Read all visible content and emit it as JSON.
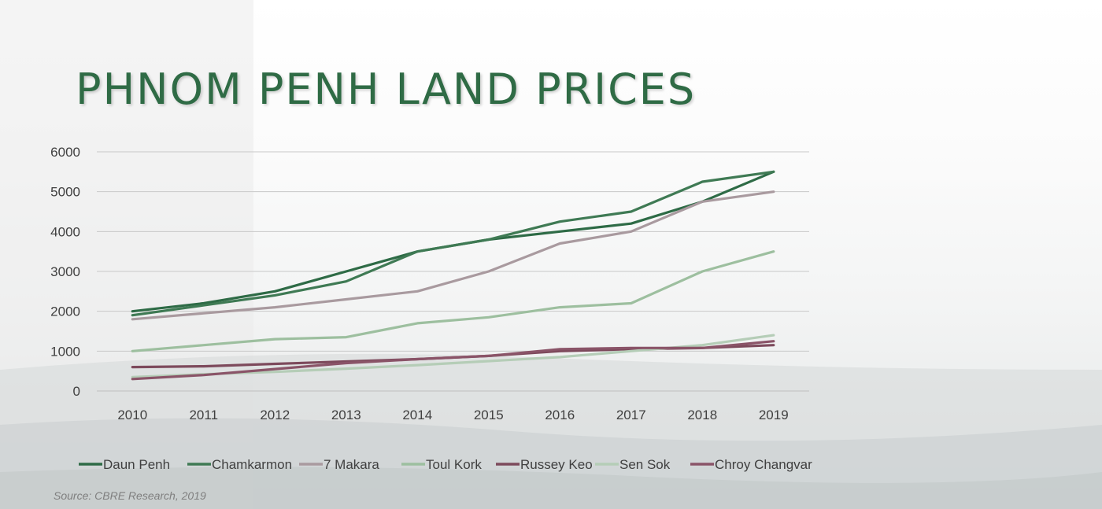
{
  "slide": {
    "title": "PHNOM PENH LAND PRICES",
    "source": "Source: CBRE Research, 2019"
  },
  "chart_data": {
    "type": "line",
    "title": "",
    "xlabel": "",
    "ylabel": "",
    "categories": [
      "2010",
      "2011",
      "2012",
      "2013",
      "2014",
      "2015",
      "2016",
      "2017",
      "2018",
      "2019"
    ],
    "ylim": [
      0,
      6000
    ],
    "yticks": [
      0,
      1000,
      2000,
      3000,
      4000,
      5000,
      6000
    ],
    "grid": true,
    "legend_position": "bottom",
    "series": [
      {
        "name": "Daun Penh",
        "color": "#2e6b46",
        "values": [
          2000,
          2200,
          2500,
          3000,
          3500,
          3800,
          4000,
          4200,
          4750,
          5500
        ]
      },
      {
        "name": "Chamkarmon",
        "color": "#3f7a54",
        "values": [
          1900,
          2150,
          2400,
          2750,
          3500,
          3800,
          4250,
          4500,
          5250,
          5500
        ]
      },
      {
        "name": "7 Makara",
        "color": "#a99a9f",
        "values": [
          1800,
          1950,
          2100,
          2300,
          2500,
          3000,
          3700,
          4000,
          4750,
          5000
        ]
      },
      {
        "name": "Toul Kork",
        "color": "#9dbf9f",
        "values": [
          1000,
          1150,
          1300,
          1350,
          1700,
          1850,
          2100,
          2200,
          3000,
          3500
        ]
      },
      {
        "name": "Russey Keo",
        "color": "#7d4a5c",
        "values": [
          600,
          620,
          680,
          740,
          800,
          880,
          1000,
          1050,
          1080,
          1150
        ]
      },
      {
        "name": "Sen Sok",
        "color": "#b5cdb7",
        "values": [
          350,
          420,
          480,
          560,
          650,
          750,
          850,
          1000,
          1150,
          1400
        ]
      },
      {
        "name": "Chroy Changvar",
        "color": "#8a5468",
        "values": [
          300,
          400,
          550,
          700,
          800,
          880,
          1050,
          1080,
          1080,
          1250
        ]
      }
    ]
  }
}
